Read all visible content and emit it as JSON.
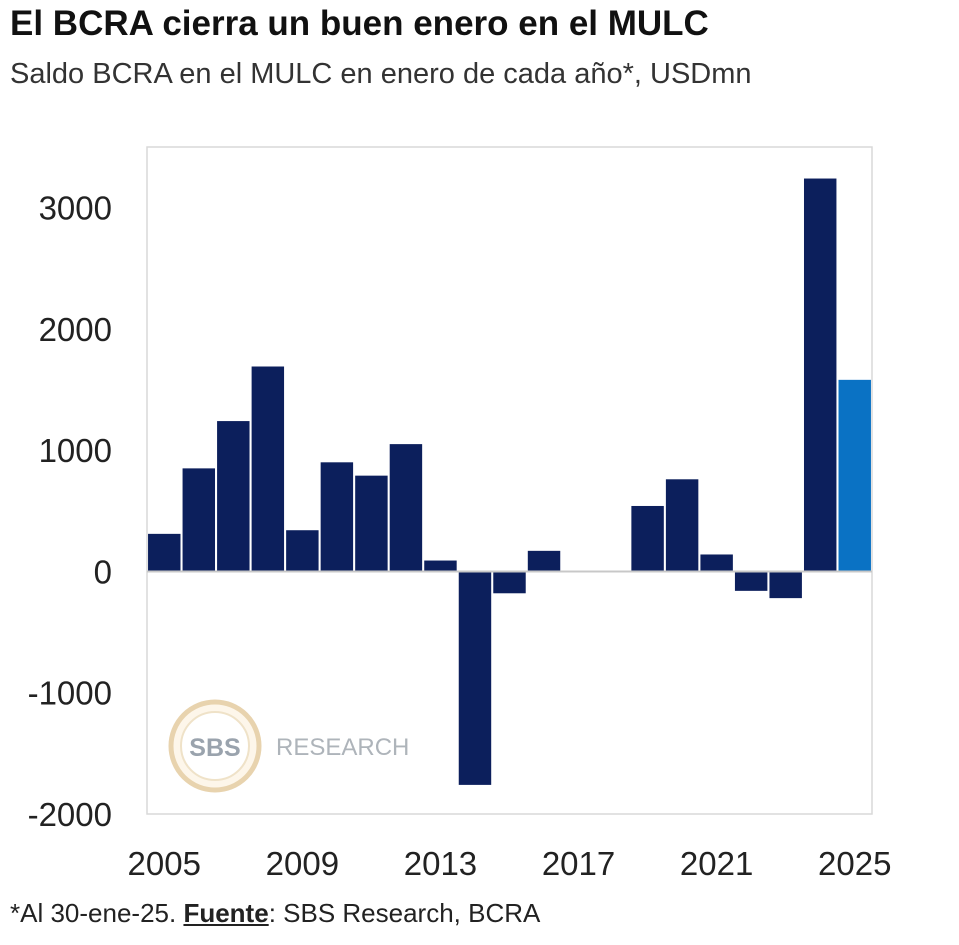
{
  "title": "El BCRA cierra un buen enero en el MULC",
  "subtitle": "Saldo BCRA en el MULC en enero de cada año*, USDmn",
  "footnote": {
    "prefix": "*Al 30-ene-25. ",
    "source_label": "Fuente",
    "source_text": ": SBS Research, BCRA"
  },
  "watermark": {
    "badge": "SBS",
    "text": "RESEARCH"
  },
  "colors": {
    "bar": "#0c1f5c",
    "highlight": "#0a72c4",
    "zero_line": "#c8c8c8",
    "frame": "#d9d9d9"
  },
  "chart_data": {
    "type": "bar",
    "x": [
      2005,
      2006,
      2007,
      2008,
      2009,
      2010,
      2011,
      2012,
      2013,
      2014,
      2015,
      2016,
      2017,
      2018,
      2019,
      2020,
      2021,
      2022,
      2023,
      2024,
      2025
    ],
    "values": [
      310,
      850,
      1240,
      1690,
      340,
      900,
      790,
      1050,
      90,
      -1760,
      -180,
      170,
      0,
      0,
      540,
      760,
      140,
      -160,
      -220,
      3240,
      1580
    ],
    "highlight_index": 20,
    "ylim": [
      -2000,
      3500
    ],
    "yticks": [
      -2000,
      -1000,
      0,
      1000,
      2000,
      3000
    ],
    "xticks": [
      2005,
      2009,
      2013,
      2017,
      2021,
      2025
    ],
    "grid": false
  }
}
